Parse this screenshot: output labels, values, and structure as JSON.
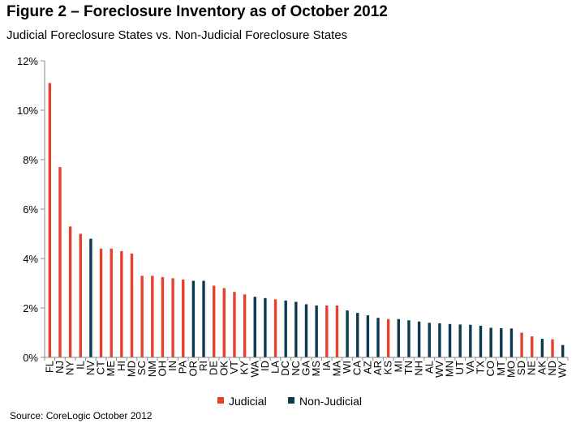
{
  "header": {
    "title": "Figure 2 – Foreclosure Inventory as of October 2012",
    "subtitle": "Judicial Foreclosure States vs. Non-Judicial Foreclosure States"
  },
  "footer": {
    "source": "Source: CoreLogic October 2012"
  },
  "colors": {
    "judicial": "#e8402c",
    "non_judicial": "#0d3a4f"
  },
  "chart_data": {
    "type": "bar",
    "title": "Figure 2 – Foreclosure Inventory as of October 2012",
    "subtitle": "Judicial Foreclosure States vs. Non-Judicial Foreclosure States",
    "xlabel": "",
    "ylabel": "",
    "ylim": [
      0,
      12
    ],
    "yticks": [
      0,
      2,
      4,
      6,
      8,
      10,
      12
    ],
    "ytick_labels": [
      "0%",
      "2%",
      "4%",
      "6%",
      "8%",
      "10%",
      "12%"
    ],
    "grid": false,
    "legend_position": "bottom",
    "legend": [
      {
        "key": "judicial",
        "label": "Judicial"
      },
      {
        "key": "non_judicial",
        "label": "Non-Judicial"
      }
    ],
    "categories": [
      "FL",
      "NJ",
      "NY",
      "IL",
      "NV",
      "CT",
      "ME",
      "HI",
      "MD",
      "SC",
      "NM",
      "OH",
      "IN",
      "PA",
      "OR",
      "RI",
      "DE",
      "OK",
      "VT",
      "KY",
      "WA",
      "ID",
      "LA",
      "DC",
      "NC",
      "GA",
      "MS",
      "IA",
      "MA",
      "WI",
      "CA",
      "AZ",
      "AR",
      "KS",
      "MI",
      "TN",
      "NH",
      "AL",
      "WV",
      "MN",
      "UT",
      "VA",
      "TX",
      "CO",
      "MT",
      "MO",
      "SD",
      "NE",
      "AK",
      "ND",
      "WY"
    ],
    "values": [
      11.1,
      7.7,
      5.3,
      5.0,
      4.8,
      4.4,
      4.4,
      4.3,
      4.2,
      3.3,
      3.3,
      3.25,
      3.2,
      3.15,
      3.1,
      3.1,
      2.9,
      2.8,
      2.65,
      2.55,
      2.45,
      2.4,
      2.35,
      2.3,
      2.25,
      2.15,
      2.1,
      2.1,
      2.1,
      1.9,
      1.8,
      1.7,
      1.6,
      1.55,
      1.55,
      1.5,
      1.45,
      1.4,
      1.38,
      1.35,
      1.33,
      1.32,
      1.28,
      1.2,
      1.18,
      1.17,
      1.0,
      0.85,
      0.75,
      0.73,
      0.5
    ],
    "groups": [
      "judicial",
      "judicial",
      "judicial",
      "judicial",
      "non_judicial",
      "judicial",
      "judicial",
      "judicial",
      "judicial",
      "judicial",
      "judicial",
      "judicial",
      "judicial",
      "judicial",
      "non_judicial",
      "non_judicial",
      "judicial",
      "judicial",
      "judicial",
      "judicial",
      "non_judicial",
      "non_judicial",
      "judicial",
      "non_judicial",
      "non_judicial",
      "non_judicial",
      "non_judicial",
      "judicial",
      "judicial",
      "non_judicial",
      "non_judicial",
      "non_judicial",
      "non_judicial",
      "judicial",
      "non_judicial",
      "non_judicial",
      "non_judicial",
      "non_judicial",
      "non_judicial",
      "non_judicial",
      "non_judicial",
      "non_judicial",
      "non_judicial",
      "non_judicial",
      "non_judicial",
      "non_judicial",
      "judicial",
      "judicial",
      "non_judicial",
      "judicial",
      "non_judicial"
    ]
  }
}
